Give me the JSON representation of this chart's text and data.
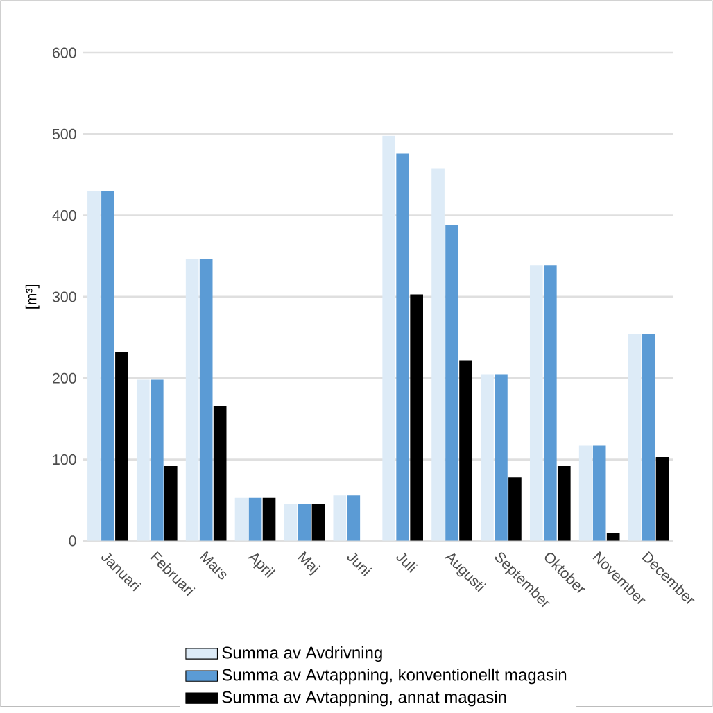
{
  "chart_data": {
    "type": "bar",
    "ylabel": "[m³]",
    "categories": [
      "Januari",
      "Februari",
      "Mars",
      "April",
      "Maj",
      "Juni",
      "Juli",
      "Augusti",
      "September",
      "Oktober",
      "November",
      "December"
    ],
    "series": [
      {
        "name": "Summa av Avdrivning",
        "color": "#ddebf7",
        "values": [
          430,
          198,
          346,
          53,
          46,
          56,
          498,
          458,
          205,
          339,
          117,
          254
        ]
      },
      {
        "name": "Summa av Avtappning, konventionellt magasin",
        "color": "#5b9bd5",
        "values": [
          430,
          198,
          346,
          53,
          46,
          56,
          476,
          388,
          205,
          339,
          117,
          254
        ]
      },
      {
        "name": "Summa av Avtappning, annat magasin",
        "color": "#000000",
        "values": [
          232,
          92,
          166,
          53,
          46,
          null,
          303,
          222,
          78,
          92,
          10,
          103
        ]
      }
    ],
    "ylim": [
      0,
      600
    ],
    "yticks": [
      0,
      100,
      200,
      300,
      400,
      500,
      600
    ],
    "grid": "y",
    "legend": "bottom"
  }
}
